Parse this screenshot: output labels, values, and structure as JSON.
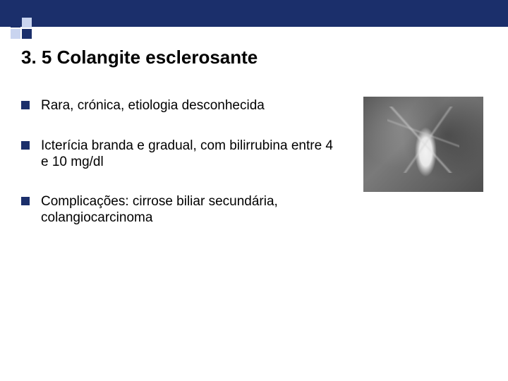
{
  "colors": {
    "primary": "#1b2f6b",
    "secondary": "#c9d4ef",
    "background": "#ffffff",
    "text": "#000000"
  },
  "title": "3. 5  Colangite esclerosante",
  "bullets": [
    "Rara, crónica, etiologia desconhecida",
    "Icterícia branda e gradual, com bilirrubina entre 4 e 10 mg/dl",
    "Complicações: cirrose biliar secundária, colangiocarcinoma"
  ],
  "typography": {
    "title_fontsize": 26,
    "bullet_fontsize": 19,
    "font_family": "Arial"
  },
  "image": {
    "description": "grayscale cholangiogram / medical radiograph",
    "width": 170,
    "height": 135
  }
}
